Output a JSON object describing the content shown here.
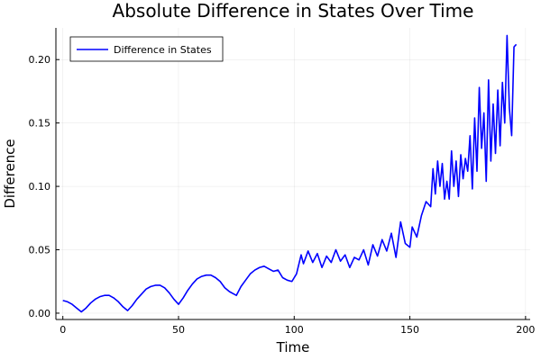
{
  "chart_data": {
    "type": "line",
    "title": "Absolute Difference in States Over Time",
    "xlabel": "Time",
    "ylabel": "Difference",
    "xlim": [
      -3,
      202
    ],
    "ylim": [
      -0.005,
      0.225
    ],
    "xticks": [
      0,
      50,
      100,
      150,
      200
    ],
    "yticks": [
      0.0,
      0.05,
      0.1,
      0.15,
      0.2
    ],
    "xtick_labels": [
      "0",
      "50",
      "100",
      "150",
      "200"
    ],
    "ytick_labels": [
      "0.00",
      "0.05",
      "0.10",
      "0.15",
      "0.20"
    ],
    "grid": true,
    "legend_position": "top-left",
    "series": [
      {
        "name": "Difference in States",
        "color": "#0000ff",
        "x": [
          0,
          2,
          4,
          6,
          8,
          10,
          12,
          14,
          16,
          18,
          20,
          22,
          24,
          26,
          28,
          30,
          32,
          34,
          36,
          38,
          40,
          42,
          44,
          46,
          48,
          50,
          52,
          54,
          56,
          58,
          60,
          62,
          64,
          66,
          68,
          70,
          72,
          74,
          75,
          77,
          79,
          81,
          83,
          85,
          87,
          89,
          91,
          93,
          95,
          97,
          99,
          101,
          103,
          104,
          106,
          108,
          110,
          112,
          114,
          116,
          118,
          120,
          122,
          124,
          126,
          128,
          130,
          132,
          134,
          136,
          138,
          140,
          142,
          144,
          146,
          148,
          150,
          151,
          153,
          155,
          157,
          159,
          160,
          161,
          162,
          163,
          164,
          165,
          166,
          167,
          168,
          169,
          170,
          171,
          172,
          173,
          174,
          175,
          176,
          177,
          178,
          179,
          180,
          181,
          182,
          183,
          184,
          185,
          186,
          187,
          188,
          189,
          190,
          191,
          192,
          193,
          194,
          195,
          196
        ],
        "values": [
          0.01,
          0.009,
          0.007,
          0.004,
          0.001,
          0.004,
          0.008,
          0.011,
          0.013,
          0.014,
          0.014,
          0.012,
          0.009,
          0.005,
          0.002,
          0.006,
          0.011,
          0.015,
          0.019,
          0.021,
          0.022,
          0.022,
          0.02,
          0.016,
          0.011,
          0.007,
          0.012,
          0.018,
          0.023,
          0.027,
          0.029,
          0.03,
          0.03,
          0.028,
          0.025,
          0.02,
          0.017,
          0.015,
          0.014,
          0.021,
          0.026,
          0.031,
          0.034,
          0.036,
          0.037,
          0.035,
          0.033,
          0.034,
          0.028,
          0.026,
          0.025,
          0.031,
          0.046,
          0.039,
          0.049,
          0.04,
          0.047,
          0.036,
          0.045,
          0.04,
          0.05,
          0.041,
          0.046,
          0.036,
          0.044,
          0.042,
          0.05,
          0.038,
          0.054,
          0.045,
          0.058,
          0.049,
          0.063,
          0.044,
          0.072,
          0.055,
          0.052,
          0.068,
          0.06,
          0.077,
          0.088,
          0.084,
          0.114,
          0.094,
          0.12,
          0.1,
          0.118,
          0.09,
          0.104,
          0.09,
          0.128,
          0.1,
          0.12,
          0.092,
          0.125,
          0.106,
          0.122,
          0.112,
          0.14,
          0.098,
          0.154,
          0.112,
          0.178,
          0.13,
          0.158,
          0.104,
          0.184,
          0.12,
          0.165,
          0.126,
          0.176,
          0.132,
          0.182,
          0.15,
          0.219,
          0.162,
          0.14,
          0.21,
          0.212
        ]
      }
    ]
  }
}
